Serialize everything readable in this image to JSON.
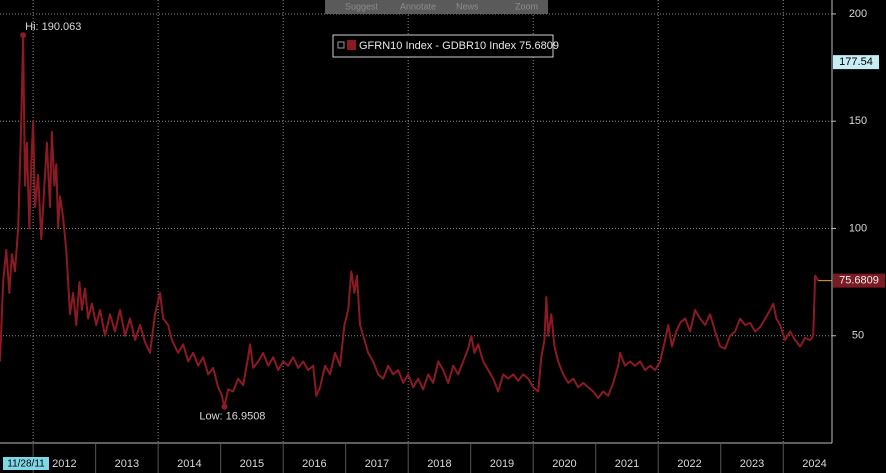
{
  "toolbar": [
    "Suggest",
    "Annotate",
    "News",
    "Zoom"
  ],
  "chart_data": {
    "type": "line",
    "legend": "GFRN10 Index - GDBR10 Index 75.6809",
    "x_start_label": "11/28/11",
    "marker_value": 177.54,
    "last_value_label": "75.6809",
    "annotations": {
      "high": "Hi: 190.063",
      "low": "Low: 16.9508"
    },
    "xlim": [
      2011.47,
      2024.78
    ],
    "xticks": [
      2012,
      2013,
      2014,
      2015,
      2016,
      2017,
      2018,
      2019,
      2020,
      2021,
      2022,
      2023,
      2024
    ],
    "ylim": [
      0,
      206.5
    ],
    "yticks": [
      50,
      100,
      150,
      200
    ],
    "grid": true,
    "x": [
      2011.47,
      2011.52,
      2011.57,
      2011.62,
      2011.66,
      2011.71,
      2011.76,
      2011.81,
      2011.84,
      2011.87,
      2011.9,
      2011.94,
      2011.97,
      2012.0,
      2012.03,
      2012.08,
      2012.13,
      2012.18,
      2012.22,
      2012.27,
      2012.3,
      2012.34,
      2012.37,
      2012.4,
      2012.43,
      2012.48,
      2012.53,
      2012.56,
      2012.59,
      2012.64,
      2012.69,
      2012.74,
      2012.78,
      2012.83,
      2012.88,
      2012.94,
      2013.01,
      2013.07,
      2013.15,
      2013.23,
      2013.31,
      2013.39,
      2013.47,
      2013.55,
      2013.63,
      2013.71,
      2013.79,
      2013.87,
      2013.95,
      2014.03,
      2014.08,
      2014.16,
      2014.22,
      2014.32,
      2014.4,
      2014.48,
      2014.56,
      2014.64,
      2014.72,
      2014.8,
      2014.88,
      2014.96,
      2015.02,
      2015.06,
      2015.12,
      2015.2,
      2015.28,
      2015.36,
      2015.44,
      2015.47,
      2015.52,
      2015.6,
      2015.68,
      2015.76,
      2015.84,
      2015.92,
      2016.0,
      2016.08,
      2016.16,
      2016.24,
      2016.32,
      2016.4,
      2016.48,
      2016.53,
      2016.59,
      2016.67,
      2016.75,
      2016.83,
      2016.91,
      2016.98,
      2017.04,
      2017.09,
      2017.14,
      2017.18,
      2017.23,
      2017.3,
      2017.36,
      2017.44,
      2017.52,
      2017.6,
      2017.68,
      2017.76,
      2017.84,
      2017.92,
      2018.0,
      2018.08,
      2018.16,
      2018.24,
      2018.32,
      2018.4,
      2018.48,
      2018.56,
      2018.64,
      2018.72,
      2018.8,
      2018.88,
      2018.96,
      2019.01,
      2019.06,
      2019.12,
      2019.2,
      2019.28,
      2019.36,
      2019.44,
      2019.52,
      2019.6,
      2019.68,
      2019.76,
      2019.84,
      2019.92,
      2020.0,
      2020.08,
      2020.13,
      2020.18,
      2020.21,
      2020.24,
      2020.29,
      2020.34,
      2020.4,
      2020.48,
      2020.56,
      2020.64,
      2020.72,
      2020.8,
      2020.88,
      2020.96,
      2021.04,
      2021.12,
      2021.2,
      2021.28,
      2021.36,
      2021.39,
      2021.47,
      2021.55,
      2021.63,
      2021.71,
      2021.79,
      2021.87,
      2021.95,
      2022.03,
      2022.11,
      2022.16,
      2022.22,
      2022.29,
      2022.35,
      2022.43,
      2022.51,
      2022.59,
      2022.67,
      2022.75,
      2022.83,
      2022.91,
      2022.99,
      2023.07,
      2023.15,
      2023.23,
      2023.31,
      2023.39,
      2023.47,
      2023.55,
      2023.63,
      2023.71,
      2023.79,
      2023.84,
      2023.89,
      2023.95,
      2024.03,
      2024.11,
      2024.19,
      2024.27,
      2024.35,
      2024.43,
      2024.48,
      2024.51,
      2024.56
    ],
    "series": [
      {
        "name": "GFRN10 Index - GDBR10 Index",
        "color": "#8b1a24",
        "values": [
          38,
          75,
          90,
          70,
          88,
          80,
          100,
          150,
          190.063,
          120,
          140,
          100,
          130,
          150,
          110,
          125,
          95,
          120,
          140,
          110,
          145,
          120,
          130,
          100,
          115,
          105,
          90,
          75,
          60,
          70,
          55,
          75,
          62,
          72,
          58,
          65,
          55,
          62,
          50,
          60,
          52,
          62,
          50,
          58,
          48,
          55,
          47,
          42,
          60,
          70,
          58,
          55,
          48,
          42,
          46,
          38,
          42,
          36,
          40,
          32,
          35,
          26,
          22,
          16.9508,
          25,
          24,
          30,
          27,
          40,
          46,
          35,
          38,
          42,
          36,
          40,
          34,
          38,
          36,
          40,
          35,
          38,
          34,
          36,
          22,
          26,
          36,
          32,
          42,
          36,
          55,
          62,
          80,
          70,
          78,
          55,
          48,
          42,
          38,
          32,
          30,
          36,
          32,
          34,
          28,
          32,
          26,
          30,
          25,
          32,
          28,
          38,
          34,
          28,
          36,
          32,
          38,
          44,
          50,
          42,
          46,
          38,
          34,
          30,
          24,
          32,
          30,
          32,
          29,
          32,
          30,
          26,
          24,
          40,
          48,
          68,
          50,
          60,
          45,
          38,
          32,
          28,
          30,
          26,
          28,
          26,
          24,
          21,
          24,
          22,
          28,
          36,
          42,
          36,
          38,
          36,
          38,
          34,
          36,
          34,
          38,
          48,
          55,
          45,
          52,
          56,
          58,
          52,
          62,
          58,
          55,
          60,
          52,
          45,
          44,
          50,
          52,
          58,
          55,
          56,
          52,
          54,
          58,
          62,
          65,
          58,
          55,
          48,
          52,
          48,
          45,
          49,
          48,
          50,
          78,
          75.6809
        ]
      }
    ]
  }
}
